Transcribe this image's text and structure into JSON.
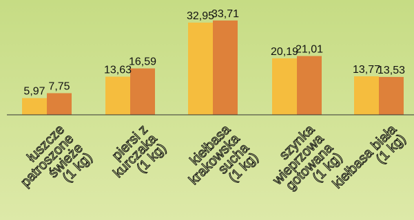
{
  "colors": {
    "background_top": "#c6dc84",
    "background_bottom": "#dde9a8",
    "series_1": "#f5bd3e",
    "series_2": "#de813a",
    "axis": "#333333",
    "text": "#111111"
  },
  "chart_data": {
    "type": "bar",
    "categories": [
      [
        "łuszcze",
        "patroszone",
        "świeże",
        "(1 kg)"
      ],
      [
        "piersi z",
        "kurczaka",
        "(1 kg)"
      ],
      [
        "kiełbasa",
        "krakowska",
        "sucha",
        "(1 kg)"
      ],
      [
        "szynka",
        "wieprzowa",
        "gotowana",
        "(1 kg)"
      ],
      [
        "kiełbasa biała",
        "(1 kg)"
      ]
    ],
    "series": [
      {
        "values": [
          5.97,
          13.63,
          32.95,
          20.19,
          13.77
        ],
        "labels": [
          "5,97",
          "13,63",
          "32,95",
          "20,19",
          "13,77"
        ]
      },
      {
        "values": [
          7.75,
          16.59,
          33.71,
          21.01,
          13.53
        ],
        "labels": [
          "7,75",
          "16,59",
          "33,71",
          "21,01",
          "13,53"
        ]
      }
    ],
    "ylim": [
      0,
      38
    ],
    "title": "",
    "xlabel": "",
    "ylabel": "",
    "grid": false,
    "legend": "none"
  }
}
